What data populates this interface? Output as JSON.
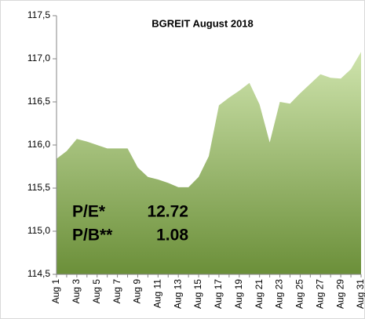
{
  "chart_data": {
    "type": "area",
    "title": "BGREIT August 2018",
    "categories": [
      "Aug 1",
      null,
      "Aug 3",
      null,
      "Aug 5",
      null,
      "Aug 7",
      null,
      "Aug 9",
      null,
      "Aug 11",
      null,
      "Aug 13",
      null,
      "Aug 15",
      null,
      "Aug 17",
      null,
      "Aug 19",
      null,
      "Aug 21",
      null,
      "Aug 23",
      null,
      "Aug 25",
      null,
      "Aug 27",
      null,
      "Aug 29",
      null,
      "Aug 31"
    ],
    "values": [
      115.84,
      115.93,
      116.07,
      116.04,
      116.0,
      115.96,
      115.96,
      115.96,
      115.74,
      115.63,
      115.6,
      115.56,
      115.51,
      115.51,
      115.63,
      115.87,
      116.46,
      116.55,
      116.63,
      116.72,
      116.47,
      116.03,
      116.5,
      116.48,
      116.6,
      116.71,
      116.82,
      116.78,
      116.77,
      116.88,
      117.08
    ],
    "color": "#9cbf6a",
    "ylim": [
      114.5,
      117.5
    ],
    "yticks": [
      {
        "value": 114.5,
        "label": "114,5"
      },
      {
        "value": 115,
        "label": "115,0"
      },
      {
        "value": 115.5,
        "label": "115,5"
      },
      {
        "value": 116,
        "label": "116,0"
      },
      {
        "value": 116.5,
        "label": "116,5"
      },
      {
        "value": 117,
        "label": "117,0"
      },
      {
        "value": 117.5,
        "label": "117,5"
      }
    ],
    "annotations": [
      "P/E*",
      "12.72",
      "P/B**",
      "1.08"
    ]
  }
}
